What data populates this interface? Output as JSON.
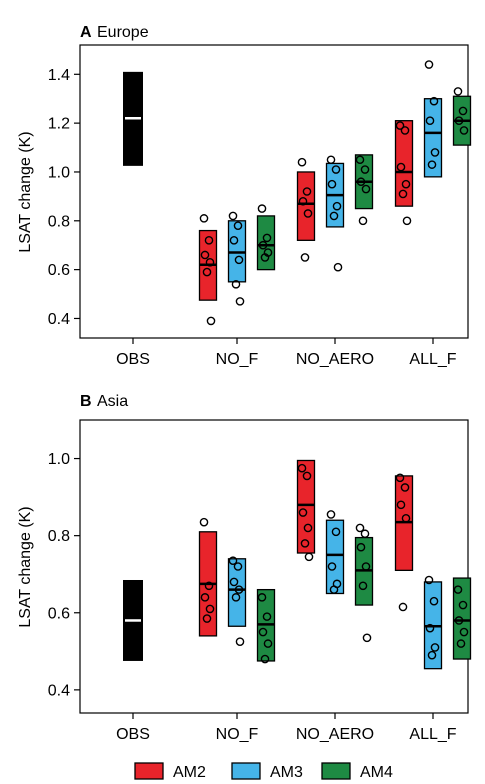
{
  "colors": {
    "AM2": "#e8242b",
    "AM3": "#45b4e8",
    "AM4": "#1e8a43",
    "OBS": "#000000"
  },
  "legend": {
    "placement": "bottom-center",
    "items": [
      {
        "name": "AM2",
        "color": "#e8242b"
      },
      {
        "name": "AM3",
        "color": "#45b4e8"
      },
      {
        "name": "AM4",
        "color": "#1e8a43"
      }
    ]
  },
  "chart_data": [
    {
      "type": "box",
      "panel_letter": "A",
      "title": "Europe",
      "ylabel": "LSAT change (K)",
      "xlabel": "",
      "ylim": [
        0.32,
        1.52
      ],
      "yticks": [
        0.4,
        0.6,
        0.8,
        1.0,
        1.2,
        1.4
      ],
      "categories": [
        "OBS",
        "NO_F",
        "NO_AERO",
        "ALL_F"
      ],
      "obs": {
        "low": 1.025,
        "high": 1.41,
        "median": 1.22
      },
      "groups": [
        {
          "category": "NO_F",
          "boxes": [
            {
              "model": "AM2",
              "low": 0.475,
              "high": 0.76,
              "median": 0.62,
              "points": [
                0.81,
                0.72,
                0.66,
                0.63,
                0.59,
                0.39
              ]
            },
            {
              "model": "AM3",
              "low": 0.55,
              "high": 0.8,
              "median": 0.67,
              "points": [
                0.82,
                0.78,
                0.72,
                0.64,
                0.54,
                0.47
              ]
            },
            {
              "model": "AM4",
              "low": 0.6,
              "high": 0.82,
              "median": 0.7,
              "points": [
                0.85,
                0.73,
                0.7,
                0.67,
                0.65
              ]
            }
          ]
        },
        {
          "category": "NO_AERO",
          "boxes": [
            {
              "model": "AM2",
              "low": 0.72,
              "high": 1.0,
              "median": 0.87,
              "points": [
                1.04,
                0.92,
                0.88,
                0.83,
                0.65
              ]
            },
            {
              "model": "AM3",
              "low": 0.775,
              "high": 1.035,
              "median": 0.905,
              "points": [
                1.05,
                1.01,
                0.95,
                0.86,
                0.82,
                0.61
              ]
            },
            {
              "model": "AM4",
              "low": 0.85,
              "high": 1.07,
              "median": 0.96,
              "points": [
                1.05,
                1.01,
                0.96,
                0.93,
                0.8
              ]
            }
          ]
        },
        {
          "category": "ALL_F",
          "boxes": [
            {
              "model": "AM2",
              "low": 0.86,
              "high": 1.21,
              "median": 1.0,
              "points": [
                1.19,
                1.17,
                1.02,
                0.95,
                0.91,
                0.8
              ]
            },
            {
              "model": "AM3",
              "low": 0.98,
              "high": 1.3,
              "median": 1.16,
              "points": [
                1.44,
                1.29,
                1.21,
                1.08,
                1.03
              ]
            },
            {
              "model": "AM4",
              "low": 1.11,
              "high": 1.31,
              "median": 1.21,
              "points": [
                1.33,
                1.25,
                1.21,
                1.17
              ]
            }
          ]
        }
      ]
    },
    {
      "type": "box",
      "panel_letter": "B",
      "title": "Asia",
      "ylabel": "LSAT change (K)",
      "xlabel": "",
      "ylim": [
        0.34,
        1.1
      ],
      "yticks": [
        0.4,
        0.6,
        0.8,
        1.0
      ],
      "categories": [
        "OBS",
        "NO_F",
        "NO_AERO",
        "ALL_F"
      ],
      "obs": {
        "low": 0.475,
        "high": 0.685,
        "median": 0.58
      },
      "groups": [
        {
          "category": "NO_F",
          "boxes": [
            {
              "model": "AM2",
              "low": 0.54,
              "high": 0.81,
              "median": 0.675,
              "points": [
                0.835,
                0.67,
                0.64,
                0.61,
                0.585
              ]
            },
            {
              "model": "AM3",
              "low": 0.565,
              "high": 0.74,
              "median": 0.66,
              "points": [
                0.735,
                0.72,
                0.68,
                0.66,
                0.64,
                0.525
              ]
            },
            {
              "model": "AM4",
              "low": 0.475,
              "high": 0.66,
              "median": 0.57,
              "points": [
                0.64,
                0.59,
                0.55,
                0.52,
                0.48
              ]
            }
          ]
        },
        {
          "category": "NO_AERO",
          "boxes": [
            {
              "model": "AM2",
              "low": 0.755,
              "high": 0.995,
              "median": 0.88,
              "points": [
                0.975,
                0.955,
                0.86,
                0.82,
                0.78,
                0.745
              ]
            },
            {
              "model": "AM3",
              "low": 0.65,
              "high": 0.84,
              "median": 0.75,
              "points": [
                0.855,
                0.81,
                0.72,
                0.675,
                0.66
              ]
            },
            {
              "model": "AM4",
              "low": 0.62,
              "high": 0.795,
              "median": 0.71,
              "points": [
                0.82,
                0.805,
                0.77,
                0.72,
                0.67,
                0.535
              ]
            }
          ]
        },
        {
          "category": "ALL_F",
          "boxes": [
            {
              "model": "AM2",
              "low": 0.71,
              "high": 0.955,
              "median": 0.835,
              "points": [
                0.95,
                0.925,
                0.88,
                0.845,
                0.615
              ]
            },
            {
              "model": "AM3",
              "low": 0.455,
              "high": 0.68,
              "median": 0.565,
              "points": [
                0.685,
                0.63,
                0.56,
                0.51,
                0.49
              ]
            },
            {
              "model": "AM4",
              "low": 0.48,
              "high": 0.69,
              "median": 0.58,
              "points": [
                0.66,
                0.62,
                0.58,
                0.55,
                0.52
              ]
            }
          ]
        }
      ]
    }
  ]
}
